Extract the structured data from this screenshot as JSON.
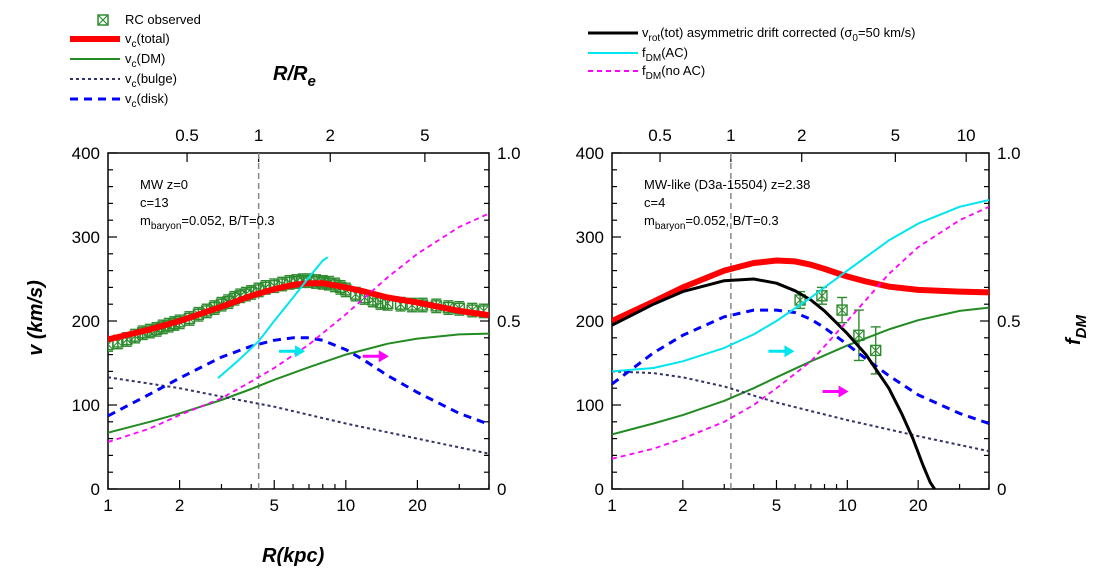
{
  "figure": {
    "top_axis_title": "R/R",
    "top_axis_title_sub": "e",
    "bottom_axis_title": "R(kpc)",
    "left_axis_title": "v (km/s)",
    "right_axis_title": "f",
    "right_axis_title_sub": "DM",
    "legend_left": [
      {
        "text": "RC observed",
        "sub": "",
        "after": "",
        "style": "marker",
        "color": "#2e8b2e"
      },
      {
        "text": "v",
        "sub": "c",
        "after": "(total)",
        "style": "thick",
        "color": "#ff0000"
      },
      {
        "text": "v",
        "sub": "c",
        "after": "(DM)",
        "style": "solid",
        "color": "#228b22"
      },
      {
        "text": "v",
        "sub": "c",
        "after": "(bulge)",
        "style": "dotted",
        "color": "#333366"
      },
      {
        "text": "v",
        "sub": "c",
        "after": "(disk)",
        "style": "dashed",
        "color": "#0000ff"
      }
    ],
    "legend_right": [
      {
        "text": "v",
        "sub": "rot",
        "after": "(tot) asymmetric drift corrected (σ",
        "sub2": "0",
        "after2": "=50 km/s)",
        "style": "black",
        "color": "#000000"
      },
      {
        "text": "f",
        "sub": "DM",
        "after": "(AC)",
        "sub2": "",
        "after2": "",
        "style": "cyan",
        "color": "#00e5ee"
      },
      {
        "text": "f",
        "sub": "DM",
        "after": "(no AC)",
        "sub2": "",
        "after2": "",
        "style": "magenta",
        "color": "#ff00ff"
      }
    ],
    "colors": {
      "total": "#ff0000",
      "dm": "#228b22",
      "bulge": "#333366",
      "disk": "#0000ff",
      "rot": "#000000",
      "fdm_ac": "#00e5ee",
      "fdm_noac": "#ff00ff",
      "obs": "#2e8b2e",
      "re_line": "#888888"
    }
  },
  "chart_data": [
    {
      "type": "line",
      "panel": "left",
      "x_scale": "log",
      "xlim": [
        1,
        40
      ],
      "ylim": [
        0,
        400
      ],
      "y2lim": [
        0,
        1.0
      ],
      "x_ticks": [
        1,
        2,
        5,
        10,
        20
      ],
      "y_ticks": [
        0,
        100,
        200,
        300,
        400
      ],
      "y2_ticks": [
        0,
        0.5,
        1.0
      ],
      "top_ticks": [
        {
          "label": "0.5",
          "r": 2.15
        },
        {
          "label": "1",
          "r": 4.3
        },
        {
          "label": "2",
          "r": 8.6
        },
        {
          "label": "5",
          "r": 21.5
        }
      ],
      "re_line_r": 4.3,
      "annotation": {
        "line1": "MW z=0",
        "line2": "c=13",
        "line3_pre": "m",
        "line3_sub": "baryon",
        "line3_post": "=0.052, B/T=0.3"
      },
      "series": [
        {
          "name": "v(total)",
          "key": "total",
          "axis": "left",
          "x": [
            1,
            1.5,
            2,
            3,
            4,
            5,
            6,
            7,
            8,
            10,
            12,
            15,
            20,
            30,
            40
          ],
          "y": [
            178,
            190,
            200,
            217,
            230,
            238,
            243,
            245,
            245,
            240,
            235,
            228,
            222,
            212,
            207
          ]
        },
        {
          "name": "v(DM)",
          "key": "dm",
          "axis": "left",
          "x": [
            1,
            1.5,
            2,
            3,
            4,
            5,
            7,
            10,
            15,
            20,
            30,
            40
          ],
          "y": [
            67,
            80,
            90,
            106,
            119,
            130,
            145,
            160,
            173,
            179,
            184,
            185
          ]
        },
        {
          "name": "v(bulge)",
          "key": "bulge",
          "axis": "left",
          "x": [
            1,
            2,
            3,
            5,
            10,
            20,
            40
          ],
          "y": [
            133,
            120,
            110,
            98,
            78,
            60,
            42
          ]
        },
        {
          "name": "v(disk)",
          "key": "disk",
          "axis": "left",
          "x": [
            1,
            1.5,
            2,
            3,
            4,
            5,
            6,
            7,
            8,
            10,
            12,
            15,
            20,
            30,
            40
          ],
          "y": [
            87,
            113,
            132,
            157,
            170,
            177,
            180,
            180,
            177,
            166,
            153,
            135,
            115,
            90,
            77
          ]
        },
        {
          "name": "fDM(AC)",
          "key": "fdm_ac",
          "axis": "right",
          "x": [
            2.9,
            3.5,
            4.3,
            5,
            6,
            7,
            8,
            8.4
          ],
          "y": [
            0.33,
            0.38,
            0.44,
            0.5,
            0.57,
            0.63,
            0.68,
            0.69
          ]
        },
        {
          "name": "fDM(no AC)",
          "key": "fdm_noac",
          "axis": "right",
          "x": [
            1,
            1.5,
            2,
            3,
            4,
            5,
            7,
            10,
            15,
            20,
            30,
            40
          ],
          "y": [
            0.14,
            0.18,
            0.22,
            0.27,
            0.32,
            0.36,
            0.43,
            0.52,
            0.63,
            0.7,
            0.78,
            0.82
          ]
        }
      ],
      "obs": {
        "x": [
          1.0,
          1.1,
          1.2,
          1.3,
          1.4,
          1.5,
          1.6,
          1.7,
          1.8,
          1.9,
          2.0,
          2.2,
          2.4,
          2.6,
          2.8,
          3.0,
          3.2,
          3.4,
          3.6,
          3.8,
          4.0,
          4.3,
          4.6,
          5.0,
          5.4,
          5.8,
          6.2,
          6.6,
          7.0,
          7.5,
          8.0,
          8.5,
          9.0,
          9.5,
          10.0,
          11.0,
          12.0,
          13.0,
          14.0,
          15.0,
          17.0,
          19.0,
          21.0,
          24.0,
          27.0,
          30.0,
          34.0,
          38.0
        ],
        "y": [
          172,
          175,
          178,
          182,
          186,
          188,
          190,
          193,
          195,
          197,
          199,
          203,
          208,
          212,
          216,
          220,
          223,
          227,
          230,
          232,
          234,
          237,
          240,
          242,
          244,
          246,
          247,
          248,
          248,
          247,
          246,
          245,
          243,
          240,
          237,
          232,
          228,
          225,
          222,
          221,
          220,
          219,
          219,
          218,
          216,
          215,
          213,
          212
        ],
        "err": 8
      },
      "arrows": [
        {
          "color_key": "fdm_ac",
          "x": 6.0,
          "y": 0.41
        },
        {
          "color_key": "fdm_noac",
          "x": 13.5,
          "y": 0.395
        }
      ]
    },
    {
      "type": "line",
      "panel": "right",
      "x_scale": "log",
      "xlim": [
        1,
        40
      ],
      "ylim": [
        0,
        400
      ],
      "y2lim": [
        0,
        1.0
      ],
      "x_ticks": [
        1,
        2,
        5,
        10,
        20
      ],
      "y_ticks": [
        0,
        100,
        200,
        300,
        400
      ],
      "y2_ticks": [
        0,
        0.5,
        1.0
      ],
      "top_ticks": [
        {
          "label": "0.5",
          "r": 1.6
        },
        {
          "label": "1",
          "r": 3.2
        },
        {
          "label": "2",
          "r": 6.4
        },
        {
          "label": "5",
          "r": 16
        },
        {
          "label": "10",
          "r": 32
        }
      ],
      "re_line_r": 3.2,
      "annotation": {
        "line1": "MW-like (D3a-15504) z=2.38",
        "line2": "c=4",
        "line3_pre": "m",
        "line3_sub": "baryon",
        "line3_post": "=0.052, B/T=0.3"
      },
      "series": [
        {
          "name": "v(total)",
          "key": "total",
          "axis": "left",
          "x": [
            1,
            1.5,
            2,
            3,
            4,
            5,
            6,
            7,
            8,
            10,
            12,
            15,
            20,
            30,
            40
          ],
          "y": [
            200,
            223,
            240,
            260,
            269,
            272,
            271,
            267,
            262,
            253,
            247,
            241,
            237,
            235,
            234
          ]
        },
        {
          "name": "v(DM)",
          "key": "dm",
          "axis": "left",
          "x": [
            1,
            1.5,
            2,
            3,
            4,
            5,
            7,
            10,
            15,
            20,
            30,
            40
          ],
          "y": [
            65,
            78,
            88,
            105,
            120,
            133,
            152,
            171,
            190,
            201,
            212,
            216
          ]
        },
        {
          "name": "v(bulge)",
          "key": "bulge",
          "axis": "left",
          "x": [
            1,
            1.5,
            2,
            3,
            5,
            10,
            20,
            40
          ],
          "y": [
            140,
            138,
            133,
            122,
            103,
            82,
            63,
            45
          ]
        },
        {
          "name": "v(disk)",
          "key": "disk",
          "axis": "left",
          "x": [
            1,
            1.5,
            2,
            3,
            4,
            5,
            6,
            7,
            8,
            10,
            12,
            15,
            20,
            30,
            40
          ],
          "y": [
            125,
            162,
            183,
            205,
            213,
            213,
            210,
            202,
            192,
            172,
            155,
            135,
            112,
            90,
            78
          ]
        },
        {
          "name": "v(rot)",
          "key": "rot",
          "axis": "left",
          "x": [
            1,
            1.5,
            2,
            3,
            4,
            5,
            6,
            7,
            8,
            10,
            12,
            15,
            17,
            19,
            21,
            22.5,
            23.5
          ],
          "y": [
            195,
            220,
            235,
            248,
            250,
            245,
            236,
            225,
            212,
            185,
            160,
            120,
            90,
            60,
            28,
            8,
            0
          ]
        },
        {
          "name": "fDM(AC)",
          "key": "fdm_ac",
          "axis": "right",
          "x": [
            1,
            1.5,
            2,
            3,
            4,
            5,
            7,
            10,
            15,
            20,
            30,
            40
          ],
          "y": [
            0.35,
            0.36,
            0.38,
            0.42,
            0.46,
            0.5,
            0.57,
            0.65,
            0.74,
            0.79,
            0.84,
            0.86
          ]
        },
        {
          "name": "fDM(no AC)",
          "key": "fdm_noac",
          "axis": "right",
          "x": [
            1,
            1.5,
            2,
            3,
            4,
            5,
            7,
            10,
            15,
            20,
            30,
            40
          ],
          "y": [
            0.09,
            0.12,
            0.15,
            0.2,
            0.25,
            0.3,
            0.38,
            0.5,
            0.64,
            0.72,
            0.8,
            0.84
          ]
        }
      ],
      "obs": {
        "x": [
          6.3,
          7.8,
          9.5,
          11.2,
          13.2
        ],
        "y": [
          225,
          230,
          213,
          183,
          165
        ],
        "yerr": [
          10,
          10,
          15,
          30,
          28
        ]
      },
      "arrows": [
        {
          "color_key": "fdm_ac",
          "x": 5.3,
          "y": 0.41
        },
        {
          "color_key": "fdm_noac",
          "x": 9.0,
          "y": 0.29
        }
      ]
    }
  ]
}
